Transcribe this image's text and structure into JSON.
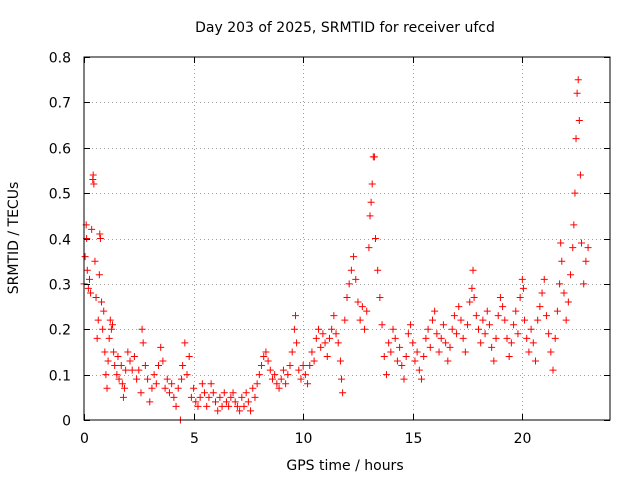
{
  "chart_data": {
    "type": "scatter",
    "title": "Day 203 of 2025, SRMTID for receiver ufcd",
    "xlabel": "GPS time / hours",
    "ylabel": "SRMTID / TECUs",
    "xlim": [
      0,
      24
    ],
    "ylim": [
      0,
      0.8
    ],
    "xticks": [
      0,
      5,
      10,
      15,
      20
    ],
    "xtick_labels": [
      "0",
      "5",
      "10",
      "15",
      "20"
    ],
    "yticks": [
      0,
      0.1,
      0.2,
      0.3,
      0.4,
      0.5,
      0.6,
      0.7,
      0.8
    ],
    "ytick_labels": [
      "0",
      "0.1",
      "0.2",
      "0.3",
      "0.4",
      "0.5",
      "0.6",
      "0.7",
      "0.8"
    ],
    "grid": true,
    "marker": "plus",
    "color": "#ff0000",
    "series": [
      {
        "name": "SRMTID",
        "points": [
          [
            0.0,
            0.3
          ],
          [
            0.05,
            0.36
          ],
          [
            0.1,
            0.43
          ],
          [
            0.12,
            0.4
          ],
          [
            0.15,
            0.33
          ],
          [
            0.2,
            0.29
          ],
          [
            0.25,
            0.31
          ],
          [
            0.3,
            0.28
          ],
          [
            0.35,
            0.42
          ],
          [
            0.4,
            0.53
          ],
          [
            0.42,
            0.54
          ],
          [
            0.45,
            0.52
          ],
          [
            0.5,
            0.35
          ],
          [
            0.55,
            0.27
          ],
          [
            0.6,
            0.18
          ],
          [
            0.65,
            0.22
          ],
          [
            0.7,
            0.32
          ],
          [
            0.72,
            0.41
          ],
          [
            0.75,
            0.4
          ],
          [
            0.8,
            0.26
          ],
          [
            0.85,
            0.2
          ],
          [
            0.9,
            0.24
          ],
          [
            0.95,
            0.15
          ],
          [
            1.0,
            0.1
          ],
          [
            1.05,
            0.07
          ],
          [
            1.1,
            0.13
          ],
          [
            1.15,
            0.18
          ],
          [
            1.2,
            0.22
          ],
          [
            1.25,
            0.2
          ],
          [
            1.3,
            0.21
          ],
          [
            1.35,
            0.15
          ],
          [
            1.4,
            0.12
          ],
          [
            1.5,
            0.1
          ],
          [
            1.55,
            0.14
          ],
          [
            1.6,
            0.09
          ],
          [
            1.7,
            0.12
          ],
          [
            1.75,
            0.08
          ],
          [
            1.8,
            0.05
          ],
          [
            1.85,
            0.07
          ],
          [
            1.9,
            0.11
          ],
          [
            2.0,
            0.15
          ],
          [
            2.1,
            0.13
          ],
          [
            2.2,
            0.11
          ],
          [
            2.3,
            0.14
          ],
          [
            2.4,
            0.09
          ],
          [
            2.5,
            0.11
          ],
          [
            2.6,
            0.06
          ],
          [
            2.65,
            0.2
          ],
          [
            2.7,
            0.17
          ],
          [
            2.8,
            0.12
          ],
          [
            2.9,
            0.09
          ],
          [
            3.0,
            0.04
          ],
          [
            3.1,
            0.07
          ],
          [
            3.2,
            0.1
          ],
          [
            3.3,
            0.08
          ],
          [
            3.4,
            0.12
          ],
          [
            3.5,
            0.16
          ],
          [
            3.6,
            0.13
          ],
          [
            3.7,
            0.07
          ],
          [
            3.8,
            0.09
          ],
          [
            3.9,
            0.06
          ],
          [
            4.0,
            0.08
          ],
          [
            4.1,
            0.05
          ],
          [
            4.2,
            0.03
          ],
          [
            4.3,
            0.07
          ],
          [
            4.4,
            0.0
          ],
          [
            4.45,
            0.09
          ],
          [
            4.5,
            0.12
          ],
          [
            4.6,
            0.17
          ],
          [
            4.7,
            0.1
          ],
          [
            4.8,
            0.14
          ],
          [
            4.9,
            0.05
          ],
          [
            5.0,
            0.07
          ],
          [
            5.1,
            0.04
          ],
          [
            5.2,
            0.03
          ],
          [
            5.3,
            0.05
          ],
          [
            5.4,
            0.08
          ],
          [
            5.5,
            0.06
          ],
          [
            5.6,
            0.03
          ],
          [
            5.7,
            0.05
          ],
          [
            5.8,
            0.08
          ],
          [
            5.9,
            0.06
          ],
          [
            6.0,
            0.04
          ],
          [
            6.1,
            0.02
          ],
          [
            6.2,
            0.05
          ],
          [
            6.3,
            0.03
          ],
          [
            6.4,
            0.06
          ],
          [
            6.5,
            0.04
          ],
          [
            6.6,
            0.03
          ],
          [
            6.7,
            0.05
          ],
          [
            6.8,
            0.06
          ],
          [
            6.9,
            0.04
          ],
          [
            7.0,
            0.03
          ],
          [
            7.1,
            0.02
          ],
          [
            7.2,
            0.05
          ],
          [
            7.3,
            0.03
          ],
          [
            7.4,
            0.06
          ],
          [
            7.5,
            0.04
          ],
          [
            7.6,
            0.02
          ],
          [
            7.7,
            0.07
          ],
          [
            7.8,
            0.05
          ],
          [
            7.9,
            0.08
          ],
          [
            8.0,
            0.1
          ],
          [
            8.1,
            0.12
          ],
          [
            8.2,
            0.14
          ],
          [
            8.3,
            0.15
          ],
          [
            8.4,
            0.13
          ],
          [
            8.5,
            0.11
          ],
          [
            8.6,
            0.09
          ],
          [
            8.7,
            0.1
          ],
          [
            8.8,
            0.08
          ],
          [
            8.9,
            0.07
          ],
          [
            9.0,
            0.09
          ],
          [
            9.1,
            0.11
          ],
          [
            9.2,
            0.08
          ],
          [
            9.3,
            0.1
          ],
          [
            9.4,
            0.12
          ],
          [
            9.5,
            0.15
          ],
          [
            9.6,
            0.2
          ],
          [
            9.65,
            0.23
          ],
          [
            9.7,
            0.17
          ],
          [
            9.8,
            0.11
          ],
          [
            9.9,
            0.09
          ],
          [
            10.0,
            0.12
          ],
          [
            10.1,
            0.1
          ],
          [
            10.2,
            0.08
          ],
          [
            10.3,
            0.12
          ],
          [
            10.4,
            0.15
          ],
          [
            10.5,
            0.13
          ],
          [
            10.6,
            0.18
          ],
          [
            10.7,
            0.2
          ],
          [
            10.8,
            0.16
          ],
          [
            10.9,
            0.19
          ],
          [
            11.0,
            0.17
          ],
          [
            11.1,
            0.14
          ],
          [
            11.2,
            0.18
          ],
          [
            11.3,
            0.2
          ],
          [
            11.4,
            0.23
          ],
          [
            11.5,
            0.19
          ],
          [
            11.6,
            0.17
          ],
          [
            11.7,
            0.13
          ],
          [
            11.75,
            0.09
          ],
          [
            11.8,
            0.06
          ],
          [
            11.9,
            0.22
          ],
          [
            12.0,
            0.27
          ],
          [
            12.1,
            0.3
          ],
          [
            12.2,
            0.33
          ],
          [
            12.3,
            0.36
          ],
          [
            12.4,
            0.31
          ],
          [
            12.5,
            0.26
          ],
          [
            12.6,
            0.22
          ],
          [
            12.7,
            0.25
          ],
          [
            12.8,
            0.2
          ],
          [
            12.9,
            0.24
          ],
          [
            13.0,
            0.38
          ],
          [
            13.05,
            0.45
          ],
          [
            13.1,
            0.48
          ],
          [
            13.15,
            0.52
          ],
          [
            13.2,
            0.58
          ],
          [
            13.25,
            0.58
          ],
          [
            13.3,
            0.4
          ],
          [
            13.4,
            0.33
          ],
          [
            13.5,
            0.27
          ],
          [
            13.6,
            0.21
          ],
          [
            13.7,
            0.14
          ],
          [
            13.8,
            0.1
          ],
          [
            13.9,
            0.17
          ],
          [
            14.0,
            0.15
          ],
          [
            14.1,
            0.2
          ],
          [
            14.2,
            0.18
          ],
          [
            14.3,
            0.13
          ],
          [
            14.4,
            0.16
          ],
          [
            14.5,
            0.12
          ],
          [
            14.6,
            0.09
          ],
          [
            14.7,
            0.14
          ],
          [
            14.8,
            0.19
          ],
          [
            14.9,
            0.21
          ],
          [
            15.0,
            0.17
          ],
          [
            15.1,
            0.13
          ],
          [
            15.2,
            0.15
          ],
          [
            15.3,
            0.11
          ],
          [
            15.4,
            0.09
          ],
          [
            15.5,
            0.14
          ],
          [
            15.6,
            0.18
          ],
          [
            15.7,
            0.2
          ],
          [
            15.8,
            0.16
          ],
          [
            15.9,
            0.22
          ],
          [
            16.0,
            0.24
          ],
          [
            16.1,
            0.19
          ],
          [
            16.2,
            0.15
          ],
          [
            16.3,
            0.18
          ],
          [
            16.4,
            0.21
          ],
          [
            16.5,
            0.17
          ],
          [
            16.6,
            0.13
          ],
          [
            16.7,
            0.16
          ],
          [
            16.8,
            0.2
          ],
          [
            16.9,
            0.23
          ],
          [
            17.0,
            0.19
          ],
          [
            17.1,
            0.25
          ],
          [
            17.2,
            0.22
          ],
          [
            17.3,
            0.18
          ],
          [
            17.4,
            0.15
          ],
          [
            17.5,
            0.21
          ],
          [
            17.6,
            0.26
          ],
          [
            17.7,
            0.29
          ],
          [
            17.75,
            0.33
          ],
          [
            17.8,
            0.27
          ],
          [
            17.9,
            0.23
          ],
          [
            18.0,
            0.2
          ],
          [
            18.1,
            0.17
          ],
          [
            18.2,
            0.22
          ],
          [
            18.3,
            0.19
          ],
          [
            18.4,
            0.24
          ],
          [
            18.5,
            0.21
          ],
          [
            18.6,
            0.16
          ],
          [
            18.7,
            0.13
          ],
          [
            18.8,
            0.18
          ],
          [
            18.9,
            0.23
          ],
          [
            19.0,
            0.27
          ],
          [
            19.1,
            0.25
          ],
          [
            19.2,
            0.22
          ],
          [
            19.3,
            0.18
          ],
          [
            19.4,
            0.14
          ],
          [
            19.5,
            0.17
          ],
          [
            19.6,
            0.21
          ],
          [
            19.7,
            0.24
          ],
          [
            19.8,
            0.19
          ],
          [
            19.9,
            0.27
          ],
          [
            20.0,
            0.31
          ],
          [
            20.05,
            0.29
          ],
          [
            20.1,
            0.22
          ],
          [
            20.2,
            0.18
          ],
          [
            20.3,
            0.15
          ],
          [
            20.4,
            0.2
          ],
          [
            20.5,
            0.17
          ],
          [
            20.6,
            0.13
          ],
          [
            20.7,
            0.22
          ],
          [
            20.8,
            0.25
          ],
          [
            20.9,
            0.28
          ],
          [
            21.0,
            0.31
          ],
          [
            21.1,
            0.23
          ],
          [
            21.2,
            0.19
          ],
          [
            21.3,
            0.15
          ],
          [
            21.4,
            0.11
          ],
          [
            21.5,
            0.18
          ],
          [
            21.6,
            0.24
          ],
          [
            21.7,
            0.3
          ],
          [
            21.75,
            0.39
          ],
          [
            21.8,
            0.35
          ],
          [
            21.9,
            0.28
          ],
          [
            22.0,
            0.22
          ],
          [
            22.1,
            0.26
          ],
          [
            22.2,
            0.32
          ],
          [
            22.3,
            0.38
          ],
          [
            22.35,
            0.43
          ],
          [
            22.4,
            0.5
          ],
          [
            22.45,
            0.62
          ],
          [
            22.5,
            0.72
          ],
          [
            22.55,
            0.75
          ],
          [
            22.6,
            0.66
          ],
          [
            22.65,
            0.54
          ],
          [
            22.7,
            0.39
          ],
          [
            22.8,
            0.3
          ],
          [
            22.9,
            0.35
          ],
          [
            23.0,
            0.38
          ]
        ]
      }
    ]
  }
}
